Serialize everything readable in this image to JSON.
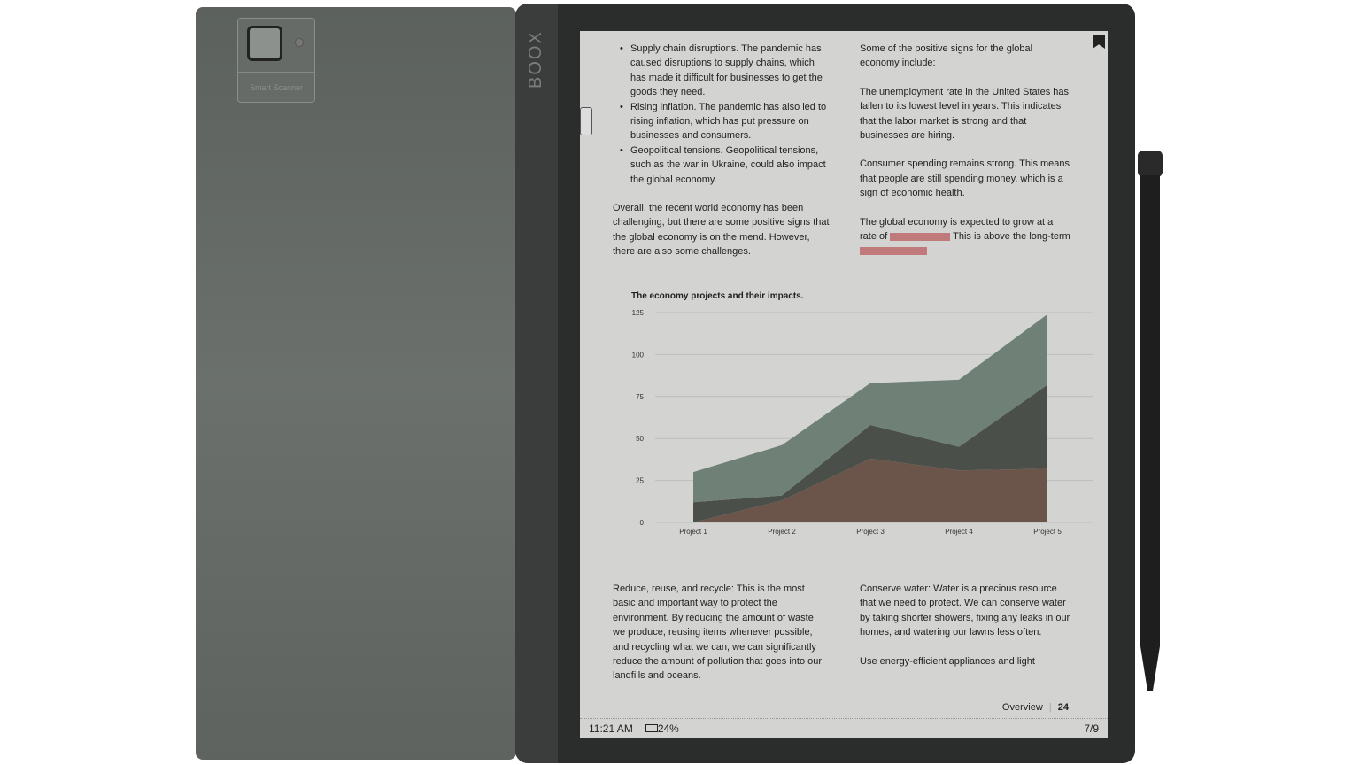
{
  "device": {
    "brand": "BOOX",
    "scanner_label": "Smart Scanner"
  },
  "left_column": {
    "bullets": [
      "Supply chain disruptions. The pandemic has caused disruptions to supply chains, which has made it difficult for businesses to get the goods they need.",
      "Rising inflation. The pandemic has also led to rising inflation, which has put pressure on businesses and consumers.",
      "Geopolitical tensions. Geopolitical tensions, such as the war in Ukraine, could also impact the global economy."
    ],
    "para": "Overall, the recent world economy has been challenging, but there are some positive signs that the global economy is on the mend. However, there are also some challenges."
  },
  "right_column": {
    "p1": "Some of the positive signs for the global economy include:",
    "p2": "The unemployment rate in the United States has fallen to its lowest level in years. This indicates that the labor market is strong and that businesses are hiring.",
    "p3": "Consumer spending remains strong. This means that people are still spending money, which is a sign of economic health.",
    "p4a": "The global economy is expected to grow at a rate of",
    "p4b": "This is above the long-term"
  },
  "bottom_left": "Reduce, reuse, and recycle: This is the most basic and important way to protect the environment. By reducing the amount of waste we produce, reusing items whenever possible, and recycling what we can, we can significantly reduce the amount of pollution that goes into our landfills and oceans.",
  "bottom_right": {
    "p1": "Conserve water: Water is a precious resource that we need to protect. We can conserve water by taking shorter showers, fixing any leaks in our homes, and watering our lawns less often.",
    "p2": "Use energy-efficient appliances and light"
  },
  "footer": {
    "section": "Overview",
    "page": "24"
  },
  "status": {
    "time": "11:21 AM",
    "battery": "24%",
    "pages": "7/9"
  },
  "colors": {
    "highlight": "#c07a7c",
    "series": [
      "#6b5449",
      "#4b4f49",
      "#6f8076"
    ]
  },
  "chart_data": {
    "type": "area",
    "stacked": true,
    "title": "The economy projects and their impacts.",
    "categories": [
      "Project 1",
      "Project 2",
      "Project 3",
      "Project 4",
      "Project 5"
    ],
    "series": [
      {
        "values": [
          0,
          13,
          38,
          31,
          32
        ]
      },
      {
        "values": [
          12,
          3,
          20,
          14,
          50
        ]
      },
      {
        "values": [
          18,
          30,
          25,
          40,
          42
        ]
      }
    ],
    "yticks": [
      0,
      25,
      50,
      75,
      100,
      125
    ],
    "ylim": [
      0,
      125
    ],
    "grid": true
  }
}
